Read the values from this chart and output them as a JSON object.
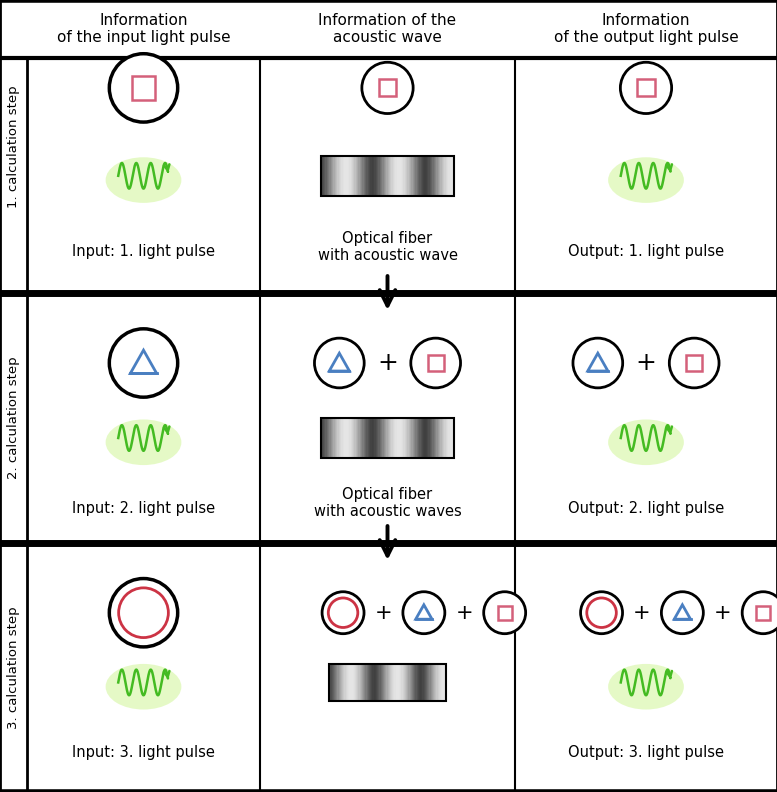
{
  "bg_color": "#ffffff",
  "pink": "#d4607a",
  "blue": "#4a7fc1",
  "red": "#cc3344",
  "green": "#44bb22",
  "glow_green": "#aaee44",
  "black": "#000000",
  "header_texts": [
    "Information\nof the input light pulse",
    "Information of the\nacoustic wave",
    "Information\nof the output light pulse"
  ],
  "row_labels": [
    "1. calculation step",
    "2. calculation step",
    "3. calculation step"
  ],
  "cell_labels": {
    "r1c1": "Input: 1. light pulse",
    "r1c2_line1": "Optical fiber",
    "r1c2_line2": "with acoustic wave",
    "r1c3": "Output: 1. light pulse",
    "r2c1": "Input: 2. light pulse",
    "r2c2_line1": "Optical fiber",
    "r2c2_line2": "with acoustic waves",
    "r2c3": "Output: 2. light pulse",
    "r3c1": "Input: 3. light pulse",
    "r3c3": "Output: 3. light pulse"
  },
  "fig_w": 7.77,
  "fig_h": 7.92,
  "dpi": 100
}
